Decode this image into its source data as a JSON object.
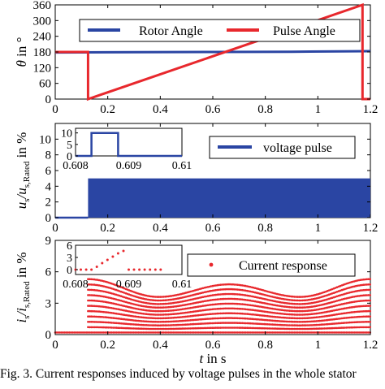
{
  "caption": "Fig. 3.   Current responses induced by voltage pulses in the whole stator",
  "xlabel": "t in s",
  "colors": {
    "blue": "#2a45a3",
    "red": "#e8282d"
  },
  "chart_data": [
    {
      "type": "line",
      "ylabel": "θ in °",
      "xlim": [
        0,
        1.2
      ],
      "ylim": [
        0,
        360
      ],
      "xticks": [
        "0",
        "0.2",
        "0.4",
        "0.6",
        "0.8",
        "1",
        "1.2"
      ],
      "yticks": [
        "0",
        "60",
        "120",
        "180",
        "240",
        "300",
        "360"
      ],
      "series": [
        {
          "name": "Rotor Angle",
          "color": "#2a45a3",
          "x": [
            0,
            0.3,
            0.6,
            0.9,
            1.2
          ],
          "y": [
            178,
            179,
            180,
            181,
            183
          ]
        },
        {
          "name": "Pulse Angle",
          "color": "#e8282d",
          "x": [
            0,
            0.125,
            0.125,
            1.17,
            1.17,
            1.2
          ],
          "y": [
            180,
            180,
            0,
            360,
            0,
            0
          ]
        }
      ]
    },
    {
      "type": "area",
      "ylabel": "us/us,Rated in %",
      "xlim": [
        0,
        1.2
      ],
      "ylim": [
        0,
        12
      ],
      "xticks": [
        "0",
        "0.2",
        "0.4",
        "0.6",
        "0.8",
        "1",
        "1.2"
      ],
      "yticks": [
        "0",
        "2",
        "4",
        "6",
        "8",
        "10"
      ],
      "series": [
        {
          "name": "voltage pulse",
          "color": "#2a45a3",
          "x": [
            0,
            0.125,
            0.125,
            1.2
          ],
          "y": [
            0,
            0,
            5,
            5
          ]
        }
      ],
      "inset": {
        "xlim": [
          0.608,
          0.61
        ],
        "ylim": [
          0,
          6
        ],
        "xticks": [
          "0.608",
          "0.609",
          "0.61"
        ],
        "yticks": [
          "0",
          "5",
          "10"
        ],
        "x": [
          0.608,
          0.6083,
          0.6083,
          0.6088,
          0.6088,
          0.61
        ],
        "y": [
          0,
          0,
          10,
          10,
          0,
          0
        ]
      }
    },
    {
      "type": "scatter",
      "ylabel": "is/is,Rated in %",
      "xlim": [
        0,
        1.2
      ],
      "ylim": [
        0,
        9
      ],
      "xticks": [
        "0",
        "0.2",
        "0.4",
        "0.6",
        "0.8",
        "1",
        "1.2"
      ],
      "yticks": [
        "0",
        "3",
        "6",
        "9"
      ],
      "series": [
        {
          "name": "Current response",
          "color": "#e8282d",
          "pulse_start": 0.125,
          "baseline": 0.2,
          "envelope_peaks": [
            5.3,
            3.6,
            4.8,
            3.6,
            5.3
          ]
        }
      ],
      "inset": {
        "xlim": [
          0.608,
          0.61
        ],
        "ylim": [
          0,
          6
        ],
        "xticks": [
          "0.608",
          "0.609",
          "0.61"
        ],
        "yticks": [
          "0",
          "3",
          "6"
        ],
        "x": [
          0.608,
          0.6081,
          0.6082,
          0.6083,
          0.6084,
          0.6085,
          0.6086,
          0.6087,
          0.6088,
          0.6089,
          0.609,
          0.6091,
          0.6092,
          0.6093,
          0.6094,
          0.6095,
          0.6096
        ],
        "y": [
          0,
          0,
          0,
          0,
          0.7,
          1.6,
          2.4,
          3.2,
          4.0,
          4.6,
          0,
          0,
          0,
          0,
          0,
          0,
          0
        ]
      }
    }
  ]
}
